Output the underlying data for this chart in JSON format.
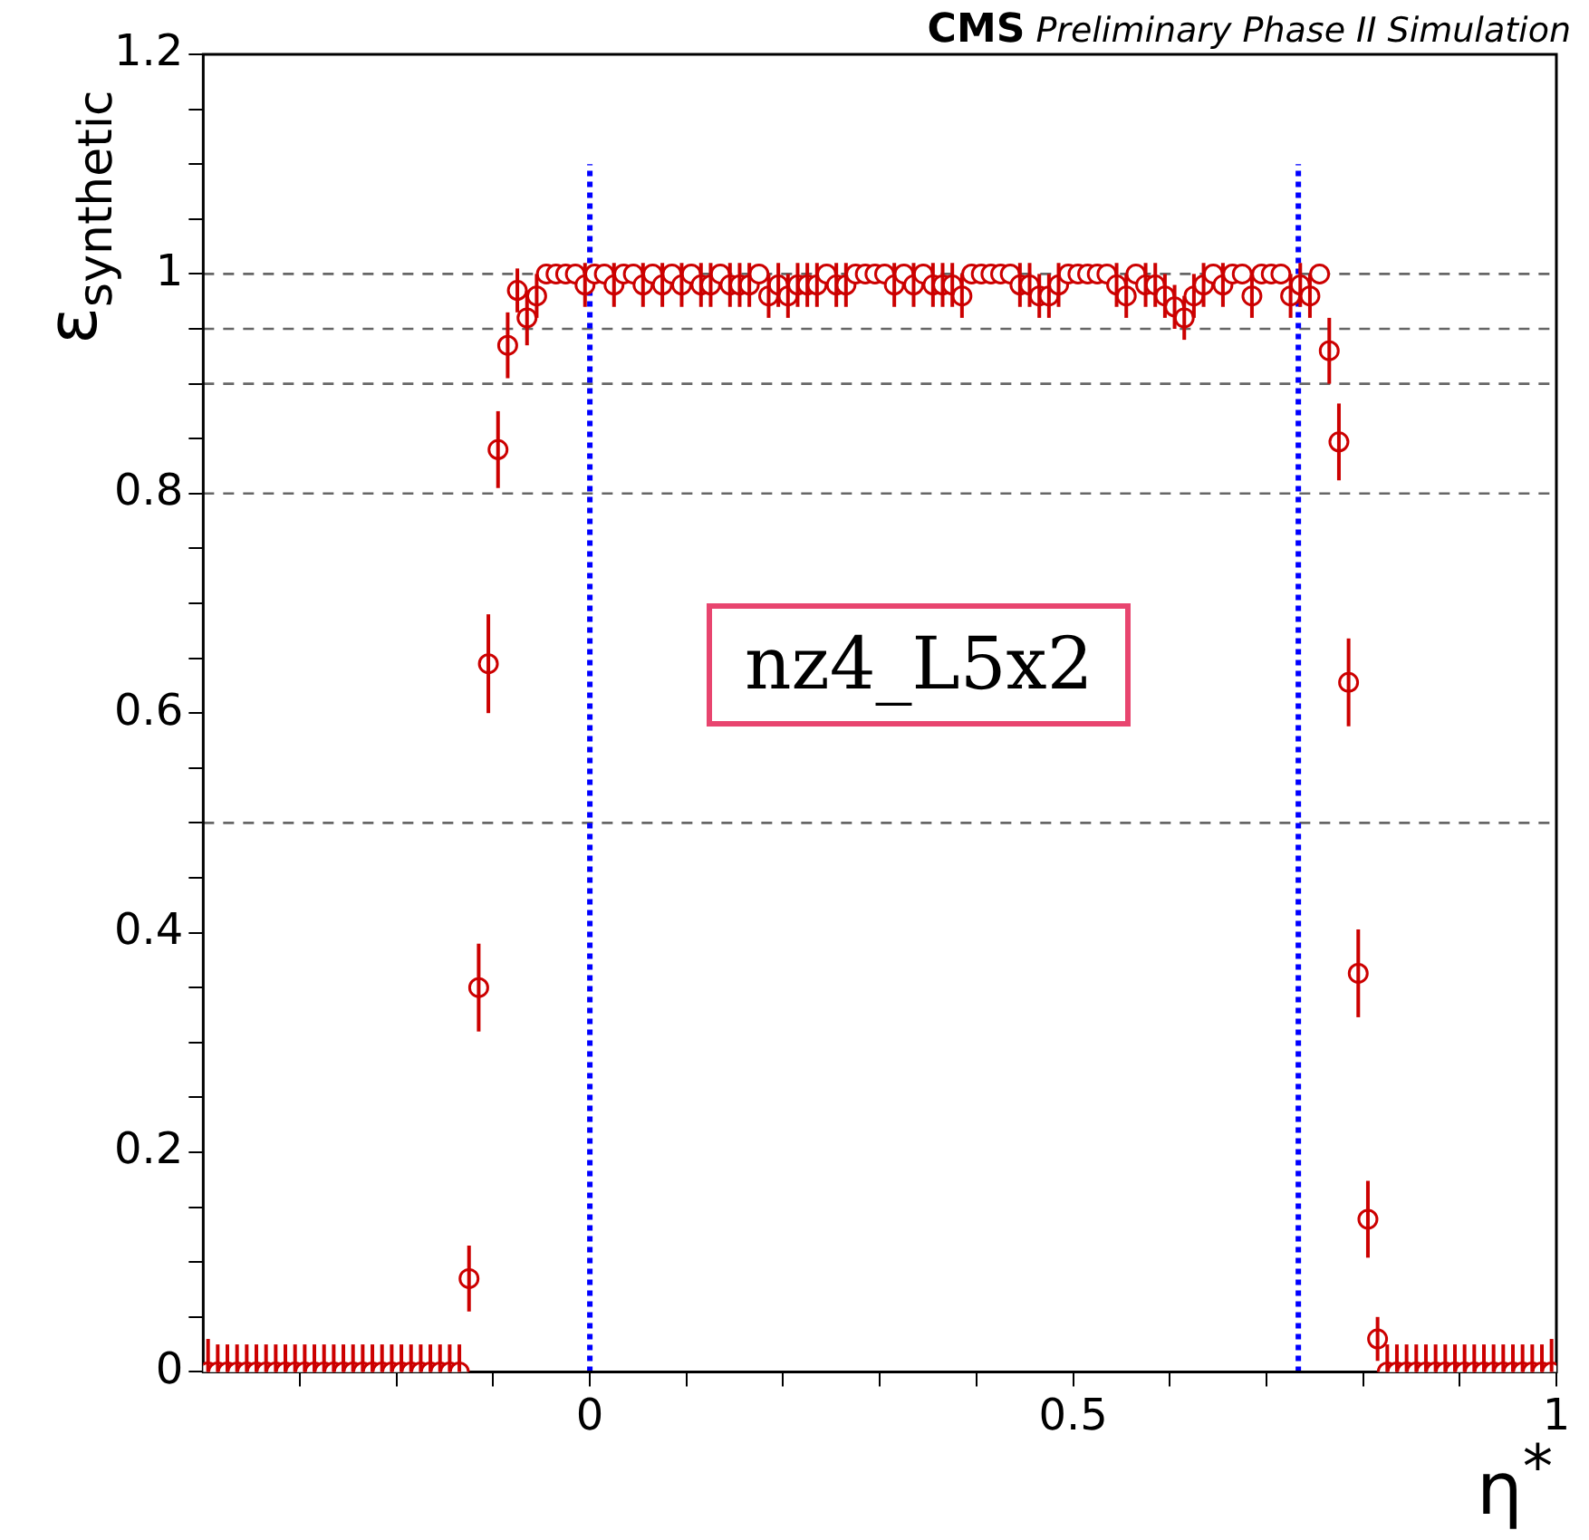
{
  "chart_data": {
    "type": "scatter",
    "title": "CMS",
    "subtitle": "Preliminary Phase II Simulation",
    "xlabel": "η$^{*}$",
    "ylabel": "ε$_{synthetic}$",
    "annotations": [
      "nz4_L5x2"
    ],
    "xlim": [
      -0.4,
      1
    ],
    "xticks": [
      {
        "value": -0.3,
        "label": null
      },
      {
        "value": -0.2,
        "label": null
      },
      {
        "value": -0.1,
        "label": null
      },
      0,
      {
        "value": 0.1,
        "label": null
      },
      {
        "value": 0.2,
        "label": null
      },
      {
        "value": 0.3,
        "label": null
      },
      {
        "value": 0.4,
        "label": null
      },
      0.5,
      {
        "value": 0.6,
        "label": null
      },
      {
        "value": 0.7,
        "label": null
      },
      {
        "value": 0.8,
        "label": null
      },
      {
        "value": 0.9,
        "label": null
      },
      1
    ],
    "ylim": [
      0,
      1.2
    ],
    "yticks": [
      0,
      {
        "value": 0.05,
        "label": null
      },
      {
        "value": 0.1,
        "label": null
      },
      {
        "value": 0.15,
        "label": null
      },
      0.2,
      {
        "value": 0.25,
        "label": null
      },
      {
        "value": 0.3,
        "label": null
      },
      {
        "value": 0.35,
        "label": null
      },
      0.4,
      {
        "value": 0.45,
        "label": null
      },
      {
        "value": 0.5,
        "label": null
      },
      {
        "value": 0.55,
        "label": null
      },
      0.6,
      {
        "value": 0.65,
        "label": null
      },
      {
        "value": 0.7,
        "label": null
      },
      {
        "value": 0.75,
        "label": null
      },
      0.8,
      {
        "value": 0.85,
        "label": null
      },
      {
        "value": 0.9,
        "label": null
      },
      {
        "value": 0.95,
        "label": null
      },
      1,
      {
        "value": 1.05,
        "label": null
      },
      {
        "value": 1.1,
        "label": null
      },
      {
        "value": 1.15,
        "label": null
      },
      1.2
    ],
    "grid": false,
    "legend": false,
    "marker": "circle",
    "ref_lines": [
      {
        "axis": "y",
        "value": 1,
        "color": "#666666",
        "line_style": "dashed"
      },
      {
        "axis": "y",
        "value": 0.95,
        "color": "#666666",
        "line_style": "dashed"
      },
      {
        "axis": "y",
        "value": 0.9,
        "color": "#666666",
        "line_style": "dashed"
      },
      {
        "axis": "y",
        "value": 0.8,
        "color": "#666666",
        "line_style": "dashed"
      },
      {
        "axis": "y",
        "value": 0.5,
        "color": "#666666",
        "line_style": "dashed"
      },
      {
        "axis": "x",
        "value": 0,
        "color": "#0000ff",
        "line_style": "dotted"
      },
      {
        "axis": "x",
        "value": 0.733,
        "color": "#0000ff",
        "line_style": "dotted"
      }
    ],
    "series": [
      {
        "color": "#cc0000",
        "x": [
          -0.395,
          -0.385,
          -0.375,
          -0.365,
          -0.355,
          -0.345,
          -0.335,
          -0.325,
          -0.315,
          -0.305,
          -0.295,
          -0.285,
          -0.275,
          -0.265,
          -0.255,
          -0.245,
          -0.235,
          -0.225,
          -0.215,
          -0.205,
          -0.195,
          -0.185,
          -0.175,
          -0.165,
          -0.155,
          -0.145,
          -0.135,
          -0.125,
          -0.115,
          -0.105,
          -0.095,
          -0.085,
          -0.075,
          -0.065,
          -0.055,
          -0.045,
          -0.035,
          -0.025,
          -0.015,
          -0.005,
          0.005,
          0.015,
          0.025,
          0.035,
          0.045,
          0.055,
          0.065,
          0.075,
          0.085,
          0.095,
          0.105,
          0.115,
          0.125,
          0.135,
          0.145,
          0.155,
          0.165,
          0.175,
          0.185,
          0.195,
          0.205,
          0.215,
          0.225,
          0.235,
          0.245,
          0.255,
          0.265,
          0.275,
          0.285,
          0.295,
          0.305,
          0.315,
          0.325,
          0.335,
          0.345,
          0.355,
          0.365,
          0.375,
          0.385,
          0.395,
          0.405,
          0.415,
          0.425,
          0.435,
          0.445,
          0.455,
          0.465,
          0.475,
          0.485,
          0.495,
          0.505,
          0.515,
          0.525,
          0.535,
          0.545,
          0.555,
          0.565,
          0.575,
          0.585,
          0.595,
          0.605,
          0.615,
          0.625,
          0.635,
          0.645,
          0.655,
          0.665,
          0.675,
          0.685,
          0.695,
          0.705,
          0.715,
          0.725,
          0.735,
          0.745,
          0.755,
          0.765,
          0.775,
          0.785,
          0.795,
          0.805,
          0.815,
          0.825,
          0.835,
          0.845,
          0.855,
          0.865,
          0.875,
          0.885,
          0.895,
          0.905,
          0.915,
          0.925,
          0.935,
          0.945,
          0.955,
          0.965,
          0.975,
          0.985,
          0.995
        ],
        "values": [
          0,
          0,
          0,
          0,
          0,
          0,
          0,
          0,
          0,
          0,
          0,
          0,
          0,
          0,
          0,
          0,
          0,
          0,
          0,
          0,
          0,
          0,
          0,
          0,
          0,
          0,
          0,
          0.085,
          0.35,
          0.645,
          0.84,
          0.935,
          0.985,
          0.96,
          0.98,
          1,
          1,
          1,
          1,
          0.99,
          1,
          1,
          0.99,
          1,
          1,
          0.99,
          1,
          0.99,
          1,
          0.99,
          1,
          0.99,
          0.99,
          1,
          0.99,
          0.99,
          0.99,
          1,
          0.98,
          0.99,
          0.98,
          0.99,
          0.99,
          0.99,
          1,
          0.99,
          0.99,
          1,
          1,
          1,
          1,
          0.99,
          1,
          0.99,
          1,
          0.99,
          0.99,
          0.99,
          0.98,
          1,
          1,
          1,
          1,
          1,
          0.99,
          0.99,
          0.98,
          0.98,
          0.99,
          1,
          1,
          1,
          1,
          1,
          0.99,
          0.98,
          1,
          0.99,
          0.99,
          0.98,
          0.97,
          0.96,
          0.98,
          0.99,
          1,
          0.99,
          1,
          1,
          0.98,
          1,
          1,
          1,
          0.98,
          0.99,
          0.98,
          1,
          0.93,
          0.847,
          0.628,
          0.363,
          0.139,
          0.03,
          0,
          0,
          0,
          0,
          0,
          0,
          0,
          0,
          0,
          0,
          0,
          0,
          0,
          0,
          0,
          0,
          0,
          0
        ],
        "errors": [
          [
            0,
            0.03
          ],
          [
            0,
            0.025
          ],
          [
            0,
            0.025
          ],
          [
            0,
            0.025
          ],
          [
            0,
            0.025
          ],
          [
            0,
            0.025
          ],
          [
            0,
            0.025
          ],
          [
            0,
            0.025
          ],
          [
            0,
            0.025
          ],
          [
            0,
            0.025
          ],
          [
            0,
            0.025
          ],
          [
            0,
            0.025
          ],
          [
            0,
            0.025
          ],
          [
            0,
            0.025
          ],
          [
            0,
            0.025
          ],
          [
            0,
            0.025
          ],
          [
            0,
            0.025
          ],
          [
            0,
            0.025
          ],
          [
            0,
            0.025
          ],
          [
            0,
            0.025
          ],
          [
            0,
            0.025
          ],
          [
            0,
            0.025
          ],
          [
            0,
            0.025
          ],
          [
            0,
            0.025
          ],
          [
            0,
            0.025
          ],
          [
            0,
            0.025
          ],
          [
            0,
            0.025
          ],
          0.03,
          0.04,
          0.045,
          0.035,
          0.03,
          0.02,
          0.025,
          0.02,
          null,
          null,
          null,
          null,
          0.02,
          null,
          null,
          0.02,
          null,
          null,
          0.02,
          null,
          0.02,
          null,
          0.02,
          null,
          0.02,
          0.02,
          null,
          0.02,
          0.02,
          0.02,
          null,
          0.02,
          0.02,
          0.02,
          0.02,
          0.02,
          0.02,
          null,
          0.02,
          0.02,
          null,
          null,
          null,
          null,
          0.02,
          null,
          0.02,
          null,
          0.02,
          0.02,
          0.02,
          0.02,
          null,
          null,
          null,
          null,
          null,
          0.02,
          0.02,
          0.02,
          0.02,
          0.02,
          null,
          null,
          null,
          null,
          null,
          0.02,
          0.02,
          null,
          0.02,
          0.02,
          0.02,
          0.02,
          0.02,
          0.02,
          0.02,
          null,
          0.02,
          null,
          null,
          0.02,
          null,
          null,
          null,
          0.02,
          0.02,
          0.02,
          null,
          0.03,
          0.035,
          0.04,
          0.04,
          0.035,
          0.02,
          [
            0,
            0.025
          ],
          [
            0,
            0.025
          ],
          [
            0,
            0.025
          ],
          [
            0,
            0.025
          ],
          [
            0,
            0.025
          ],
          [
            0,
            0.025
          ],
          [
            0,
            0.025
          ],
          [
            0,
            0.025
          ],
          [
            0,
            0.025
          ],
          [
            0,
            0.025
          ],
          [
            0,
            0.025
          ],
          [
            0,
            0.025
          ],
          [
            0,
            0.025
          ],
          [
            0,
            0.025
          ],
          [
            0,
            0.025
          ],
          [
            0,
            0.025
          ],
          [
            0,
            0.025
          ],
          [
            0,
            0.03
          ]
        ]
      }
    ]
  }
}
